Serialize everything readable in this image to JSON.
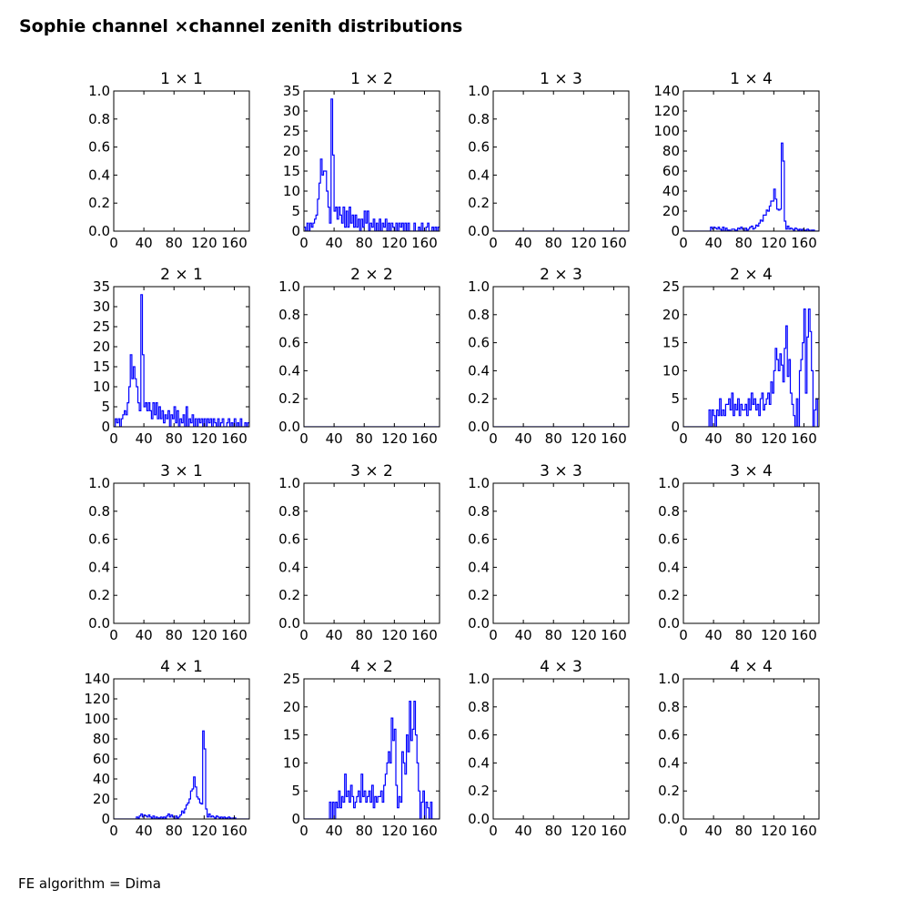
{
  "figure": {
    "title": "Sophie channel ×channel zenith distributions",
    "footer": "FE algorithm = Dima",
    "line_color": "#0000ff"
  },
  "chart_data": [
    {
      "type": "line",
      "title": "1 × 1",
      "xlim": [
        0,
        180
      ],
      "xticks": [
        0,
        40,
        80,
        120,
        160
      ],
      "ylim": [
        0,
        1
      ],
      "yticks": [
        "0.0",
        "0.2",
        "0.4",
        "0.6",
        "0.8",
        "1.0"
      ],
      "x": [],
      "y": []
    },
    {
      "type": "line",
      "title": "1 × 2",
      "xlim": [
        0,
        180
      ],
      "xticks": [
        0,
        40,
        80,
        120,
        160
      ],
      "ylim": [
        0,
        35
      ],
      "yticks": [
        "0",
        "5",
        "10",
        "15",
        "20",
        "25",
        "30",
        "35"
      ],
      "x": [
        0,
        2,
        4,
        6,
        8,
        10,
        12,
        14,
        16,
        18,
        20,
        22,
        24,
        26,
        28,
        30,
        32,
        34,
        36,
        38,
        40,
        42,
        44,
        46,
        48,
        50,
        52,
        54,
        56,
        58,
        60,
        62,
        64,
        66,
        68,
        70,
        72,
        74,
        76,
        78,
        80,
        82,
        84,
        86,
        88,
        90,
        92,
        94,
        96,
        98,
        100,
        102,
        104,
        106,
        108,
        110,
        112,
        114,
        116,
        118,
        120,
        122,
        124,
        126,
        128,
        130,
        132,
        134,
        136,
        138,
        140,
        142,
        144,
        146,
        148,
        150,
        152,
        154,
        156,
        158,
        160,
        162,
        164,
        166,
        168,
        170,
        172,
        174,
        176,
        178
      ],
      "y": [
        1,
        0,
        2,
        0,
        2,
        1,
        2,
        3,
        4,
        8,
        12,
        18,
        14,
        15,
        15,
        10,
        6,
        2,
        33,
        19,
        5,
        6,
        3,
        6,
        4,
        2,
        6,
        1,
        5,
        1,
        6,
        2,
        4,
        1,
        4,
        1,
        3,
        0,
        3,
        1,
        5,
        2,
        5,
        0,
        2,
        1,
        3,
        0,
        2,
        0,
        3,
        0,
        2,
        1,
        3,
        0,
        2,
        0,
        2,
        1,
        0,
        2,
        0,
        2,
        1,
        2,
        0,
        2,
        0,
        2,
        0,
        0,
        0,
        2,
        0,
        0,
        1,
        0,
        2,
        0,
        0,
        1,
        2,
        0,
        0,
        1,
        0,
        1,
        0,
        1
      ]
    },
    {
      "type": "line",
      "title": "1 × 3",
      "xlim": [
        0,
        180
      ],
      "xticks": [
        0,
        40,
        80,
        120,
        160
      ],
      "ylim": [
        0,
        1
      ],
      "yticks": [
        "0.0",
        "0.2",
        "0.4",
        "0.6",
        "0.8",
        "1.0"
      ],
      "x": [
        0,
        180
      ],
      "y": [
        0,
        0
      ]
    },
    {
      "type": "line",
      "title": "1 × 4",
      "xlim": [
        0,
        180
      ],
      "xticks": [
        0,
        40,
        80,
        120,
        160
      ],
      "ylim": [
        0,
        140
      ],
      "yticks": [
        "0",
        "20",
        "40",
        "60",
        "80",
        "100",
        "120",
        "140"
      ],
      "x": [
        0,
        2,
        4,
        6,
        8,
        10,
        12,
        14,
        16,
        18,
        20,
        22,
        24,
        26,
        28,
        30,
        32,
        34,
        36,
        38,
        40,
        42,
        44,
        46,
        48,
        50,
        52,
        54,
        56,
        58,
        60,
        62,
        64,
        66,
        68,
        70,
        72,
        74,
        76,
        78,
        80,
        82,
        84,
        86,
        88,
        90,
        92,
        94,
        96,
        98,
        100,
        102,
        104,
        106,
        108,
        110,
        112,
        114,
        116,
        118,
        120,
        122,
        124,
        126,
        128,
        130,
        132,
        134,
        136,
        138,
        140,
        142,
        144,
        146,
        148,
        150,
        152,
        154,
        156,
        158,
        160,
        162,
        164,
        166,
        168,
        170,
        172,
        174,
        176,
        178
      ],
      "y": [
        0,
        0,
        0,
        0,
        0,
        0,
        0,
        0,
        0,
        0,
        0,
        0,
        0,
        0,
        0,
        0,
        0,
        0,
        4,
        2,
        4,
        3,
        2,
        4,
        2,
        1,
        4,
        0,
        3,
        1,
        1,
        0,
        2,
        2,
        1,
        1,
        3,
        2,
        4,
        2,
        0,
        3,
        1,
        2,
        4,
        5,
        2,
        3,
        6,
        5,
        8,
        11,
        10,
        16,
        16,
        21,
        20,
        25,
        30,
        30,
        42,
        32,
        22,
        21,
        22,
        88,
        70,
        10,
        2,
        5,
        2,
        3,
        2,
        1,
        3,
        2,
        1,
        2,
        1,
        2,
        1,
        1,
        2,
        1,
        0,
        1,
        1,
        0,
        0,
        0
      ]
    },
    {
      "type": "line",
      "title": "2 × 1",
      "xlim": [
        0,
        180
      ],
      "xticks": [
        0,
        40,
        80,
        120,
        160
      ],
      "ylim": [
        0,
        35
      ],
      "yticks": [
        "0",
        "5",
        "10",
        "15",
        "20",
        "25",
        "30",
        "35"
      ],
      "x": [
        0,
        2,
        4,
        6,
        8,
        10,
        12,
        14,
        16,
        18,
        20,
        22,
        24,
        26,
        28,
        30,
        32,
        34,
        36,
        38,
        40,
        42,
        44,
        46,
        48,
        50,
        52,
        54,
        56,
        58,
        60,
        62,
        64,
        66,
        68,
        70,
        72,
        74,
        76,
        78,
        80,
        82,
        84,
        86,
        88,
        90,
        92,
        94,
        96,
        98,
        100,
        102,
        104,
        106,
        108,
        110,
        112,
        114,
        116,
        118,
        120,
        122,
        124,
        126,
        128,
        130,
        132,
        134,
        136,
        138,
        140,
        142,
        144,
        146,
        148,
        150,
        152,
        154,
        156,
        158,
        160,
        162,
        164,
        166,
        168,
        170,
        172,
        174,
        176,
        178
      ],
      "y": [
        0,
        2,
        1,
        2,
        0,
        2,
        3,
        4,
        3,
        6,
        10,
        18,
        12,
        15,
        12,
        10,
        6,
        4,
        33,
        18,
        5,
        6,
        4,
        6,
        4,
        2,
        6,
        3,
        6,
        2,
        5,
        2,
        4,
        1,
        3,
        2,
        4,
        0,
        3,
        2,
        5,
        1,
        4,
        0,
        2,
        1,
        3,
        0,
        5,
        0,
        2,
        1,
        3,
        0,
        2,
        0,
        2,
        1,
        2,
        0,
        2,
        0,
        2,
        1,
        2,
        0,
        2,
        1,
        0,
        2,
        0,
        1,
        2,
        0,
        0,
        1,
        2,
        0,
        1,
        0,
        2,
        0,
        1,
        0,
        2,
        0,
        0,
        1,
        0,
        1
      ]
    },
    {
      "type": "line",
      "title": "2 × 2",
      "xlim": [
        0,
        180
      ],
      "xticks": [
        0,
        40,
        80,
        120,
        160
      ],
      "ylim": [
        0,
        1
      ],
      "yticks": [
        "0.0",
        "0.2",
        "0.4",
        "0.6",
        "0.8",
        "1.0"
      ],
      "x": [
        0,
        180
      ],
      "y": [
        0,
        0
      ]
    },
    {
      "type": "line",
      "title": "2 × 3",
      "xlim": [
        0,
        180
      ],
      "xticks": [
        0,
        40,
        80,
        120,
        160
      ],
      "ylim": [
        0,
        1
      ],
      "yticks": [
        "0.0",
        "0.2",
        "0.4",
        "0.6",
        "0.8",
        "1.0"
      ],
      "x": [
        0,
        180
      ],
      "y": [
        0,
        0
      ]
    },
    {
      "type": "line",
      "title": "2 × 4",
      "xlim": [
        0,
        180
      ],
      "xticks": [
        0,
        40,
        80,
        120,
        160
      ],
      "ylim": [
        0,
        25
      ],
      "yticks": [
        "0",
        "5",
        "10",
        "15",
        "20",
        "25"
      ],
      "x": [
        0,
        2,
        4,
        6,
        8,
        10,
        12,
        14,
        16,
        18,
        20,
        22,
        24,
        26,
        28,
        30,
        32,
        34,
        36,
        38,
        40,
        42,
        44,
        46,
        48,
        50,
        52,
        54,
        56,
        58,
        60,
        62,
        64,
        66,
        68,
        70,
        72,
        74,
        76,
        78,
        80,
        82,
        84,
        86,
        88,
        90,
        92,
        94,
        96,
        98,
        100,
        102,
        104,
        106,
        108,
        110,
        112,
        114,
        116,
        118,
        120,
        122,
        124,
        126,
        128,
        130,
        132,
        134,
        136,
        138,
        140,
        142,
        144,
        146,
        148,
        150,
        152,
        154,
        156,
        158,
        160,
        162,
        164,
        166,
        168,
        170,
        172,
        174,
        176,
        178
      ],
      "y": [
        0,
        0,
        0,
        0,
        0,
        0,
        0,
        0,
        0,
        0,
        0,
        0,
        0,
        0,
        0,
        0,
        0,
        3,
        0,
        3,
        2,
        0,
        3,
        2,
        5,
        2,
        3,
        2,
        4,
        4,
        5,
        3,
        6,
        2,
        4,
        3,
        5,
        2,
        4,
        3,
        3,
        4,
        2,
        5,
        3,
        6,
        4,
        5,
        3,
        4,
        2,
        5,
        6,
        3,
        4,
        5,
        6,
        4,
        8,
        6,
        10,
        14,
        12,
        10,
        13,
        11,
        8,
        14,
        18,
        9,
        12,
        6,
        4,
        2,
        0,
        5,
        0,
        10,
        12,
        15,
        21,
        6,
        16,
        21,
        17,
        10,
        0,
        3,
        5,
        0
      ]
    },
    {
      "type": "line",
      "title": "3 × 1",
      "xlim": [
        0,
        180
      ],
      "xticks": [
        0,
        40,
        80,
        120,
        160
      ],
      "ylim": [
        0,
        1
      ],
      "yticks": [
        "0.0",
        "0.2",
        "0.4",
        "0.6",
        "0.8",
        "1.0"
      ],
      "x": [],
      "y": []
    },
    {
      "type": "line",
      "title": "3 × 2",
      "xlim": [
        0,
        180
      ],
      "xticks": [
        0,
        40,
        80,
        120,
        160
      ],
      "ylim": [
        0,
        1
      ],
      "yticks": [
        "0.0",
        "0.2",
        "0.4",
        "0.6",
        "0.8",
        "1.0"
      ],
      "x": [],
      "y": []
    },
    {
      "type": "line",
      "title": "3 × 3",
      "xlim": [
        0,
        180
      ],
      "xticks": [
        0,
        40,
        80,
        120,
        160
      ],
      "ylim": [
        0,
        1
      ],
      "yticks": [
        "0.0",
        "0.2",
        "0.4",
        "0.6",
        "0.8",
        "1.0"
      ],
      "x": [],
      "y": []
    },
    {
      "type": "line",
      "title": "3 × 4",
      "xlim": [
        0,
        180
      ],
      "xticks": [
        0,
        40,
        80,
        120,
        160
      ],
      "ylim": [
        0,
        1
      ],
      "yticks": [
        "0.0",
        "0.2",
        "0.4",
        "0.6",
        "0.8",
        "1.0"
      ],
      "x": [],
      "y": []
    },
    {
      "type": "line",
      "title": "4 × 1",
      "xlim": [
        0,
        180
      ],
      "xticks": [
        0,
        40,
        80,
        120,
        160
      ],
      "ylim": [
        0,
        140
      ],
      "yticks": [
        "0",
        "20",
        "40",
        "60",
        "80",
        "100",
        "120",
        "140"
      ],
      "x": [
        0,
        2,
        4,
        6,
        8,
        10,
        12,
        14,
        16,
        18,
        20,
        22,
        24,
        26,
        28,
        30,
        32,
        34,
        36,
        38,
        40,
        42,
        44,
        46,
        48,
        50,
        52,
        54,
        56,
        58,
        60,
        62,
        64,
        66,
        68,
        70,
        72,
        74,
        76,
        78,
        80,
        82,
        84,
        86,
        88,
        90,
        92,
        94,
        96,
        98,
        100,
        102,
        104,
        106,
        108,
        110,
        112,
        114,
        116,
        118,
        120,
        122,
        124,
        126,
        128,
        130,
        132,
        134,
        136,
        138,
        140,
        142,
        144,
        146,
        148,
        150,
        152,
        154,
        156,
        158,
        160,
        162,
        164,
        166,
        168,
        170,
        172,
        174,
        176,
        178
      ],
      "y": [
        0,
        0,
        0,
        0,
        0,
        0,
        0,
        0,
        0,
        0,
        0,
        0,
        0,
        0,
        0,
        2,
        1,
        3,
        5,
        2,
        4,
        3,
        2,
        4,
        2,
        1,
        3,
        0,
        2,
        1,
        1,
        2,
        1,
        2,
        1,
        3,
        5,
        2,
        4,
        2,
        0,
        3,
        1,
        2,
        4,
        8,
        6,
        10,
        14,
        16,
        20,
        28,
        30,
        42,
        32,
        22,
        20,
        16,
        15,
        88,
        70,
        10,
        2,
        5,
        2,
        3,
        2,
        1,
        3,
        2,
        1,
        2,
        1,
        2,
        1,
        1,
        2,
        1,
        0,
        1,
        1,
        0,
        0,
        0,
        0,
        0,
        0,
        0,
        0,
        0
      ]
    },
    {
      "type": "line",
      "title": "4 × 2",
      "xlim": [
        0,
        180
      ],
      "xticks": [
        0,
        40,
        80,
        120,
        160
      ],
      "ylim": [
        0,
        25
      ],
      "yticks": [
        "0",
        "5",
        "10",
        "15",
        "20",
        "25"
      ],
      "x": [
        0,
        2,
        4,
        6,
        8,
        10,
        12,
        14,
        16,
        18,
        20,
        22,
        24,
        26,
        28,
        30,
        32,
        34,
        36,
        38,
        40,
        42,
        44,
        46,
        48,
        50,
        52,
        54,
        56,
        58,
        60,
        62,
        64,
        66,
        68,
        70,
        72,
        74,
        76,
        78,
        80,
        82,
        84,
        86,
        88,
        90,
        92,
        94,
        96,
        98,
        100,
        102,
        104,
        106,
        108,
        110,
        112,
        114,
        116,
        118,
        120,
        122,
        124,
        126,
        128,
        130,
        132,
        134,
        136,
        138,
        140,
        142,
        144,
        146,
        148,
        150,
        152,
        154,
        156,
        158,
        160,
        162,
        164,
        166,
        168,
        170,
        172,
        174,
        176,
        178
      ],
      "y": [
        0,
        0,
        0,
        0,
        0,
        0,
        0,
        0,
        0,
        0,
        0,
        0,
        0,
        0,
        0,
        0,
        0,
        3,
        0,
        3,
        0,
        3,
        2,
        5,
        2,
        4,
        3,
        8,
        4,
        5,
        3,
        6,
        4,
        2,
        3,
        4,
        5,
        3,
        8,
        4,
        5,
        3,
        4,
        5,
        3,
        6,
        2,
        4,
        3,
        4,
        4,
        5,
        3,
        6,
        8,
        10,
        12,
        10,
        18,
        14,
        16,
        6,
        2,
        4,
        3,
        12,
        10,
        8,
        15,
        12,
        21,
        14,
        16,
        21,
        15,
        10,
        5,
        0,
        3,
        5,
        0,
        3,
        2,
        0,
        3,
        0,
        0,
        0,
        0,
        0
      ]
    },
    {
      "type": "line",
      "title": "4 × 3",
      "xlim": [
        0,
        180
      ],
      "xticks": [
        0,
        40,
        80,
        120,
        160
      ],
      "ylim": [
        0,
        1
      ],
      "yticks": [
        "0.0",
        "0.2",
        "0.4",
        "0.6",
        "0.8",
        "1.0"
      ],
      "x": [],
      "y": []
    },
    {
      "type": "line",
      "title": "4 × 4",
      "xlim": [
        0,
        180
      ],
      "xticks": [
        0,
        40,
        80,
        120,
        160
      ],
      "ylim": [
        0,
        1
      ],
      "yticks": [
        "0.0",
        "0.2",
        "0.4",
        "0.6",
        "0.8",
        "1.0"
      ],
      "x": [],
      "y": []
    }
  ]
}
